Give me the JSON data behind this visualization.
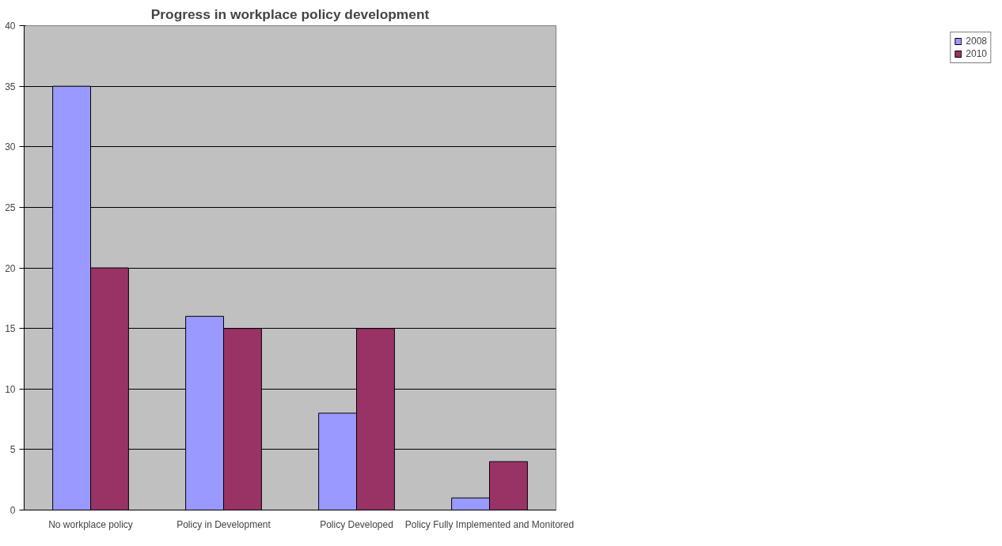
{
  "chart_data": {
    "type": "bar",
    "title": "Progress in workplace policy development",
    "categories": [
      "No workplace policy",
      "Policy in Development",
      "Policy Developed",
      "Policy Fully Implemented and Monitored"
    ],
    "series": [
      {
        "name": "2008",
        "color": "#9999ff",
        "values": [
          35,
          16,
          8,
          1
        ]
      },
      {
        "name": "2010",
        "color": "#993366",
        "values": [
          20,
          15,
          15,
          4
        ]
      }
    ],
    "ylim": [
      0,
      40
    ],
    "yticks": [
      0,
      5,
      10,
      15,
      20,
      25,
      30,
      35,
      40
    ],
    "grid": "y",
    "legend": "right"
  }
}
